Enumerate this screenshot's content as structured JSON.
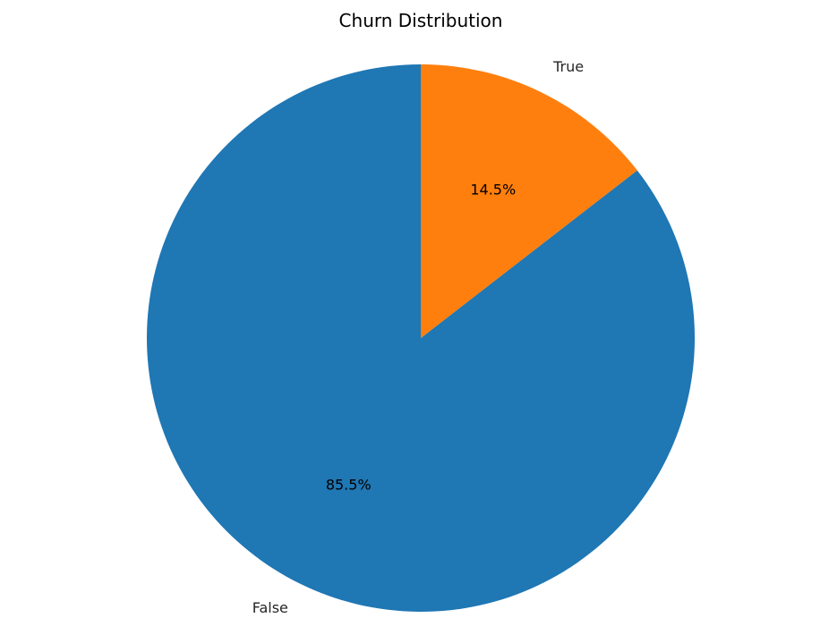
{
  "chart_data": {
    "type": "pie",
    "title": "Churn Distribution",
    "start_angle_deg": 90,
    "direction": "counterclockwise",
    "slices": [
      {
        "label": "False",
        "value": 85.5,
        "pct_label": "85.5%",
        "color": "#1f77b4"
      },
      {
        "label": "True",
        "value": 14.5,
        "pct_label": "14.5%",
        "color": "#ff7f0e"
      }
    ]
  }
}
